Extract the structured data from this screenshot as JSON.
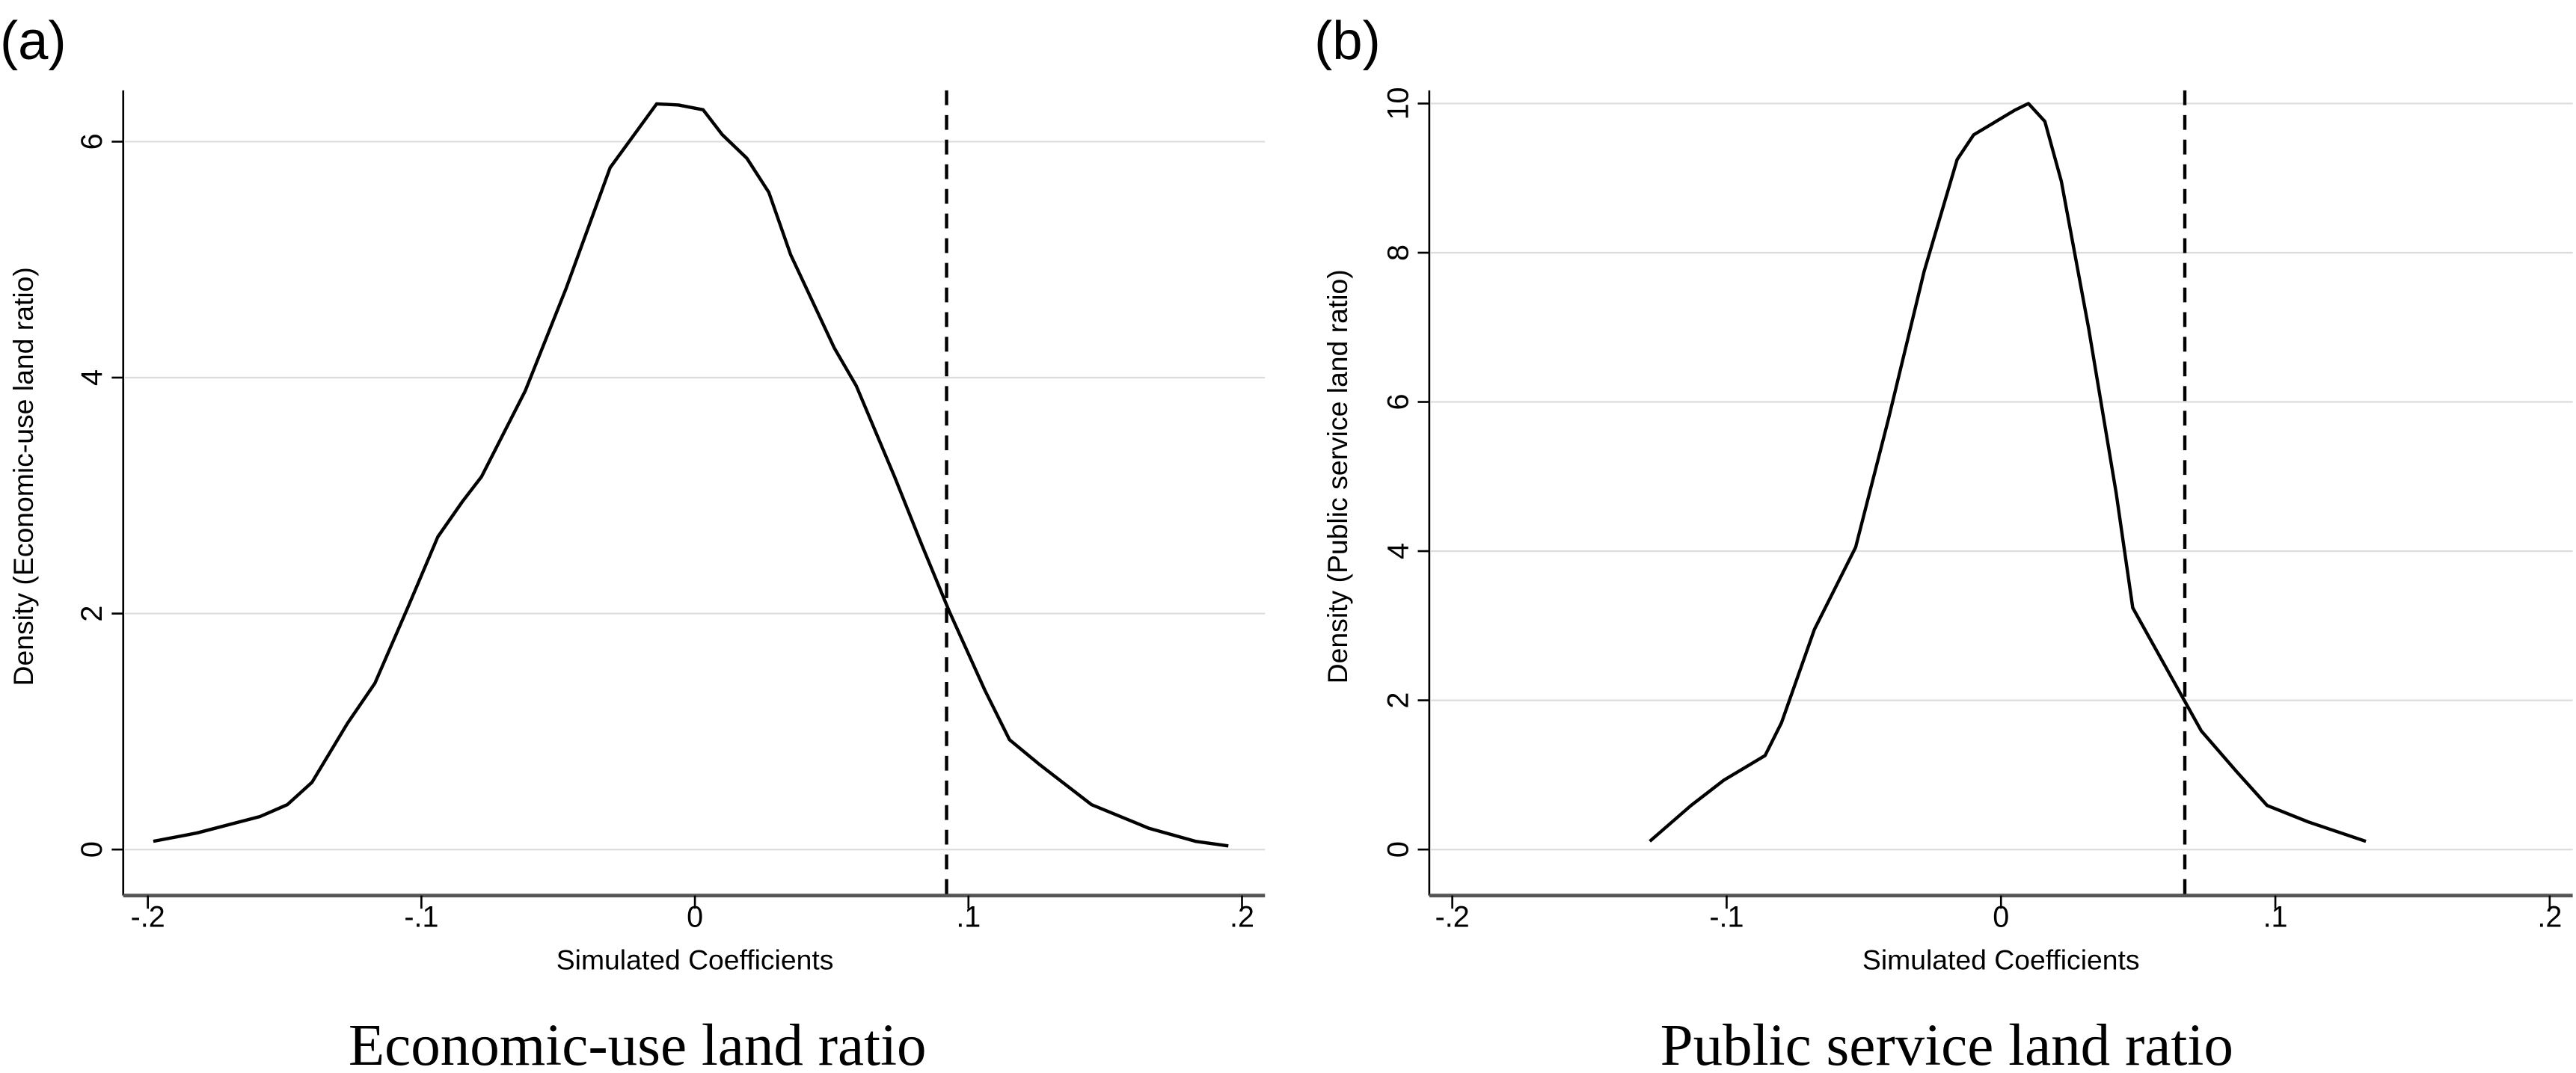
{
  "figure": {
    "panels": [
      {
        "label": "(a)",
        "caption": "Economic-use land ratio",
        "ylabel": "Density (Economic-use land ratio)",
        "xlabel": "Simulated Coefficients"
      },
      {
        "label": "(b)",
        "caption": "Public service land ratio",
        "ylabel": "Density (Public service land ratio)",
        "xlabel": "Simulated Coefficients"
      }
    ]
  },
  "chart_data": [
    {
      "type": "line",
      "title": "Economic-use land ratio",
      "panel_label": "(a)",
      "xlabel": "Simulated Coefficients",
      "ylabel": "Density (Economic-use land ratio)",
      "xlim": [
        -0.2,
        0.2
      ],
      "ylim": [
        0,
        6.4
      ],
      "xticks": [
        "-.2",
        "-.1",
        "0",
        ".1",
        ".2"
      ],
      "xtick_values": [
        -0.2,
        -0.1,
        0,
        0.1,
        0.2
      ],
      "yticks": [
        "0",
        "2",
        "4",
        "6"
      ],
      "ytick_values": [
        0,
        2,
        4,
        6
      ],
      "grid": "horizontal",
      "reference_line": {
        "type": "vertical",
        "style": "dashed",
        "x": 0.092
      },
      "series": [
        {
          "name": "Kernel density",
          "x": [
            -0.198,
            -0.182,
            -0.159,
            -0.149,
            -0.14,
            -0.127,
            -0.117,
            -0.105,
            -0.094,
            -0.085,
            -0.078,
            -0.062,
            -0.047,
            -0.031,
            -0.014,
            -0.006,
            0.003,
            0.01,
            0.019,
            0.027,
            0.035,
            0.051,
            0.059,
            0.073,
            0.083,
            0.093,
            0.106,
            0.115,
            0.126,
            0.145,
            0.166,
            0.183,
            0.195
          ],
          "y": [
            0.07,
            0.14,
            0.28,
            0.38,
            0.57,
            1.07,
            1.41,
            2.05,
            2.65,
            2.95,
            3.16,
            3.89,
            4.76,
            5.78,
            6.32,
            6.31,
            6.27,
            6.06,
            5.86,
            5.57,
            5.04,
            4.25,
            3.93,
            3.16,
            2.58,
            2.02,
            1.35,
            0.93,
            0.72,
            0.38,
            0.18,
            0.07,
            0.03
          ]
        }
      ]
    },
    {
      "type": "line",
      "title": "Public service land ratio",
      "panel_label": "(b)",
      "xlabel": "Simulated Coefficients",
      "ylabel": "Density (Public service land ratio)",
      "xlim": [
        -0.2,
        0.2
      ],
      "ylim": [
        0,
        10
      ],
      "xticks": [
        "-.2",
        "-.1",
        "0",
        ".1",
        ".2"
      ],
      "xtick_values": [
        -0.2,
        -0.1,
        0,
        0.1,
        0.2
      ],
      "yticks": [
        "0",
        "2",
        "4",
        "6",
        "8",
        "10"
      ],
      "ytick_values": [
        0,
        2,
        4,
        6,
        8,
        10
      ],
      "grid": "horizontal",
      "reference_line": {
        "type": "vertical",
        "style": "dashed",
        "x": 0.067
      },
      "series": [
        {
          "name": "Kernel density",
          "x": [
            -0.128,
            -0.113,
            -0.101,
            -0.086,
            -0.08,
            -0.068,
            -0.053,
            -0.041,
            -0.028,
            -0.016,
            -0.01,
            0.005,
            0.01,
            0.016,
            0.022,
            0.032,
            0.042,
            0.048,
            0.058,
            0.073,
            0.086,
            0.097,
            0.112,
            0.133
          ],
          "y": [
            0.11,
            0.59,
            0.93,
            1.26,
            1.7,
            2.95,
            4.05,
            5.77,
            7.75,
            9.25,
            9.58,
            9.91,
            10.0,
            9.76,
            8.96,
            6.98,
            4.78,
            3.24,
            2.58,
            1.59,
            1.04,
            0.59,
            0.37,
            0.11
          ]
        }
      ]
    }
  ]
}
